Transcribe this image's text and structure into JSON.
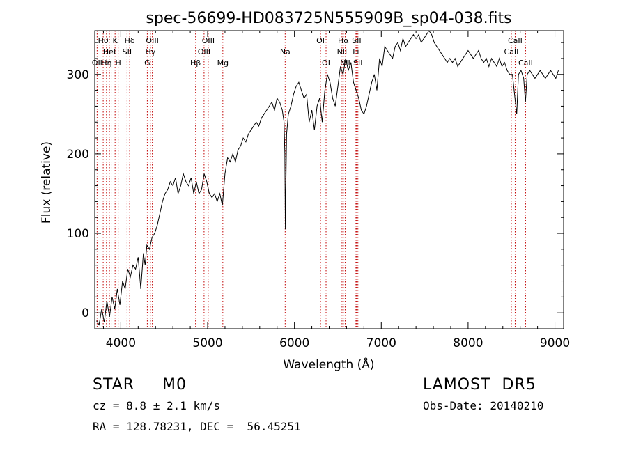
{
  "chart_data": {
    "type": "line",
    "title": "spec-56699-HD083725N555909B_sp04-038.fits",
    "xlabel": "Wavelength (Å)",
    "ylabel": "Flux (relative)",
    "xlim": [
      3700,
      9100
    ],
    "ylim": [
      -20,
      355
    ],
    "xticks": [
      4000,
      5000,
      6000,
      7000,
      8000,
      9000
    ],
    "yticks": [
      0,
      100,
      200,
      300
    ],
    "grid": false,
    "line_color": "#000000",
    "marker_color": "#c00000",
    "series": [
      {
        "x": [
          3720,
          3750,
          3780,
          3810,
          3840,
          3870,
          3900,
          3930,
          3960,
          3990,
          4020,
          4050,
          4080,
          4110,
          4140,
          4170,
          4200,
          4230,
          4260,
          4280,
          4300,
          4330,
          4360,
          4390,
          4420,
          4450,
          4480,
          4510,
          4540,
          4570,
          4600,
          4630,
          4660,
          4690,
          4720,
          4750,
          4780,
          4810,
          4840,
          4870,
          4900,
          4930,
          4960,
          4990,
          5020,
          5050,
          5080,
          5110,
          5140,
          5170,
          5200,
          5230,
          5260,
          5290,
          5320,
          5350,
          5380,
          5410,
          5440,
          5470,
          5500,
          5530,
          5560,
          5590,
          5620,
          5650,
          5680,
          5710,
          5740,
          5770,
          5800,
          5830,
          5860,
          5880,
          5890,
          5895,
          5900,
          5910,
          5930,
          5960,
          5990,
          6020,
          6050,
          6080,
          6110,
          6140,
          6170,
          6200,
          6230,
          6260,
          6290,
          6320,
          6350,
          6380,
          6410,
          6440,
          6470,
          6500,
          6530,
          6560,
          6590,
          6620,
          6650,
          6680,
          6710,
          6740,
          6770,
          6800,
          6830,
          6860,
          6890,
          6920,
          6950,
          6980,
          7010,
          7040,
          7070,
          7100,
          7130,
          7160,
          7190,
          7220,
          7250,
          7280,
          7310,
          7340,
          7370,
          7400,
          7430,
          7460,
          7490,
          7520,
          7550,
          7580,
          7610,
          7640,
          7670,
          7700,
          7730,
          7760,
          7790,
          7820,
          7850,
          7880,
          7910,
          7940,
          7970,
          8000,
          8030,
          8060,
          8090,
          8120,
          8150,
          8180,
          8210,
          8240,
          8270,
          8300,
          8330,
          8360,
          8390,
          8420,
          8450,
          8480,
          8510,
          8540,
          8560,
          8580,
          8610,
          8640,
          8660,
          8680,
          8710,
          8740,
          8770,
          8800,
          8830,
          8860,
          8890,
          8920,
          8950,
          8980,
          9010,
          9040
        ],
        "y": [
          -10,
          -15,
          5,
          -12,
          15,
          -5,
          20,
          5,
          30,
          10,
          40,
          30,
          55,
          45,
          60,
          55,
          70,
          30,
          75,
          60,
          85,
          80,
          95,
          100,
          110,
          125,
          140,
          150,
          155,
          165,
          160,
          170,
          150,
          160,
          175,
          165,
          160,
          170,
          150,
          165,
          150,
          155,
          175,
          165,
          150,
          145,
          150,
          140,
          150,
          135,
          175,
          195,
          190,
          200,
          190,
          205,
          210,
          220,
          215,
          225,
          230,
          235,
          240,
          235,
          245,
          250,
          255,
          260,
          265,
          255,
          270,
          265,
          255,
          240,
          200,
          105,
          150,
          225,
          250,
          260,
          275,
          285,
          290,
          280,
          270,
          275,
          240,
          255,
          230,
          260,
          270,
          240,
          280,
          300,
          290,
          270,
          260,
          285,
          310,
          300,
          320,
          305,
          315,
          290,
          280,
          270,
          255,
          250,
          260,
          275,
          290,
          300,
          280,
          320,
          310,
          335,
          330,
          325,
          320,
          335,
          340,
          330,
          345,
          335,
          340,
          345,
          350,
          345,
          350,
          340,
          345,
          350,
          355,
          350,
          340,
          335,
          330,
          325,
          320,
          315,
          320,
          315,
          320,
          310,
          315,
          320,
          325,
          330,
          325,
          320,
          325,
          330,
          320,
          315,
          320,
          310,
          320,
          315,
          310,
          320,
          310,
          315,
          305,
          300,
          300,
          270,
          250,
          300,
          305,
          295,
          265,
          300,
          305,
          300,
          295,
          300,
          305,
          300,
          295,
          300,
          305,
          300,
          295,
          305
        ]
      }
    ],
    "lines": [
      {
        "x": 3727,
        "label": "OII",
        "row": 3
      },
      {
        "x": 3797,
        "label": "Hθ",
        "row": 1
      },
      {
        "x": 3835,
        "label": "Hη",
        "row": 3
      },
      {
        "x": 3869,
        "label": "HeI",
        "row": 2
      },
      {
        "x": 3889,
        "label": "",
        "row": 0
      },
      {
        "x": 3934,
        "label": "K",
        "row": 1
      },
      {
        "x": 3970,
        "label": "H",
        "row": 3
      },
      {
        "x": 4072,
        "label": "SII",
        "row": 2
      },
      {
        "x": 4102,
        "label": "Hδ",
        "row": 1
      },
      {
        "x": 4305,
        "label": "G",
        "row": 3
      },
      {
        "x": 4341,
        "label": "Hγ",
        "row": 2
      },
      {
        "x": 4363,
        "label": "OIII",
        "row": 1
      },
      {
        "x": 4861,
        "label": "Hβ",
        "row": 3
      },
      {
        "x": 4959,
        "label": "OIII",
        "row": 2
      },
      {
        "x": 5007,
        "label": "OIII",
        "row": 1
      },
      {
        "x": 5175,
        "label": "Mg",
        "row": 3
      },
      {
        "x": 5893,
        "label": "Na",
        "row": 2
      },
      {
        "x": 6300,
        "label": "OI",
        "row": 1
      },
      {
        "x": 6364,
        "label": "OI",
        "row": 3
      },
      {
        "x": 6548,
        "label": "NII",
        "row": 2
      },
      {
        "x": 6563,
        "label": "Hα",
        "row": 1
      },
      {
        "x": 6584,
        "label": "NII",
        "row": 3
      },
      {
        "x": 6708,
        "label": "Li",
        "row": 2
      },
      {
        "x": 6716,
        "label": "SII",
        "row": 1
      },
      {
        "x": 6731,
        "label": "SII",
        "row": 3
      },
      {
        "x": 8498,
        "label": "CaII",
        "row": 2
      },
      {
        "x": 8542,
        "label": "CaII",
        "row": 1
      },
      {
        "x": 8662,
        "label": "CaII",
        "row": 3
      }
    ]
  },
  "info": {
    "class_line": "STAR     M0",
    "survey": "LAMOST  DR5",
    "cz": "cz = 8.8 ± 2.1 km/s",
    "obs_date": "Obs-Date: 20140210",
    "coords": "RA = 128.78231, DEC =  56.45251"
  }
}
